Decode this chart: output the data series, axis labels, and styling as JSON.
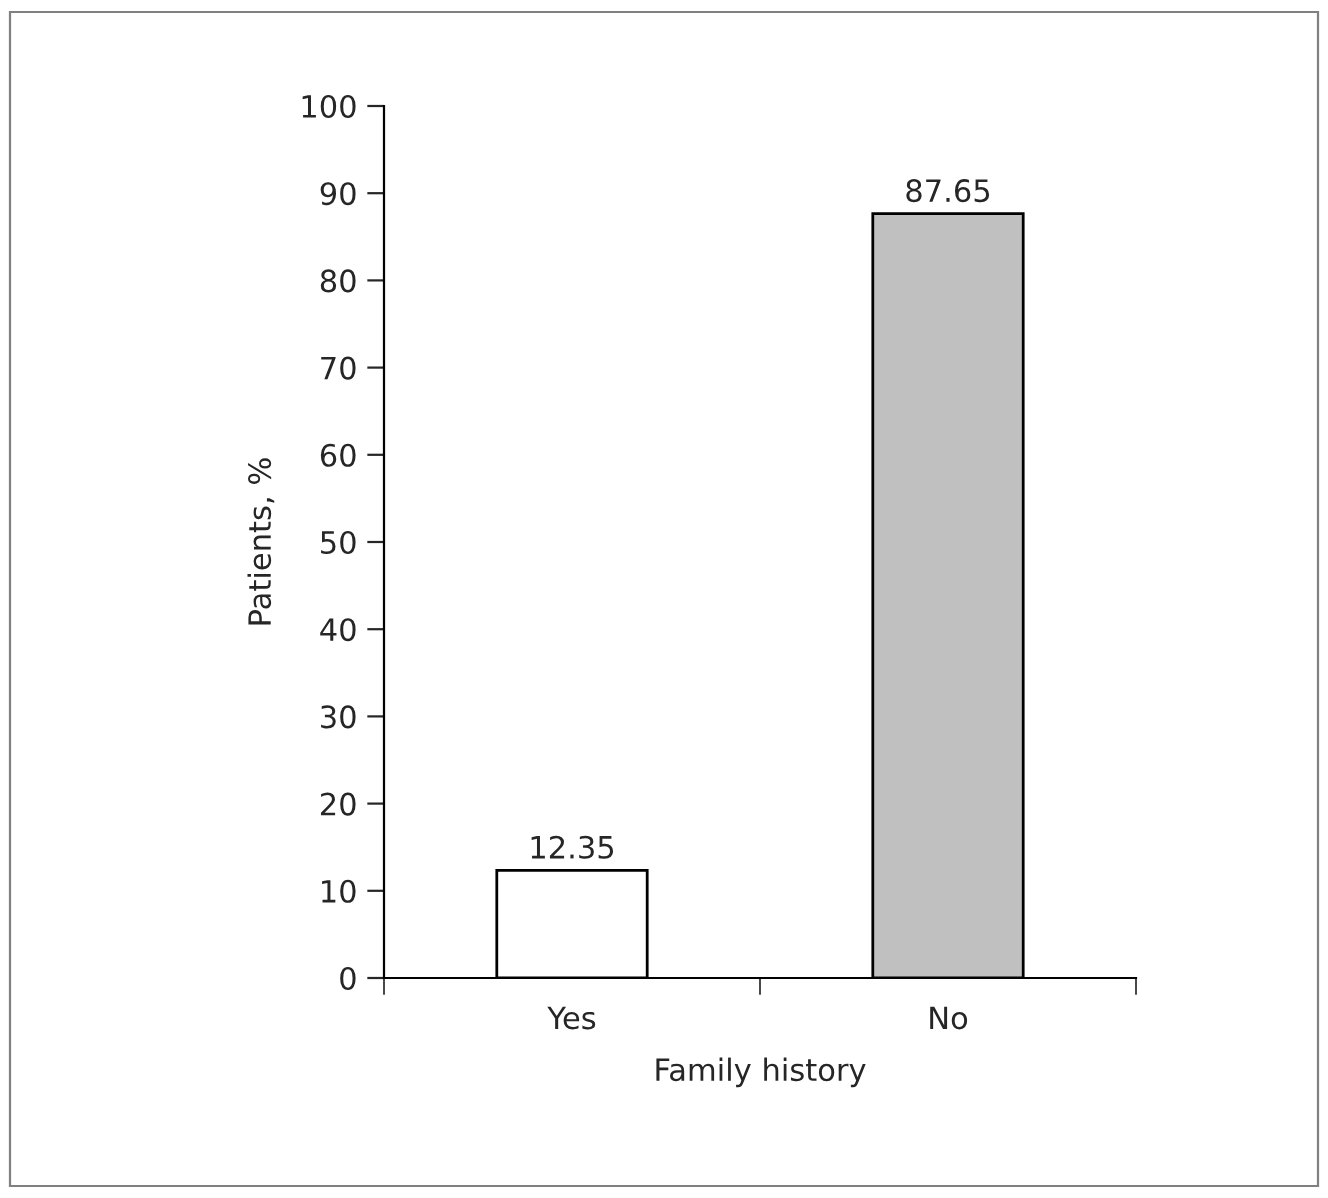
{
  "chart_data": {
    "type": "bar",
    "xlabel": "Family history",
    "ylabel": "Patients, %",
    "categories": [
      "Yes",
      "No"
    ],
    "values": [
      12.35,
      87.65
    ],
    "colors": [
      "#ffffff",
      "#c0c0c0"
    ],
    "ylim": [
      0,
      100
    ],
    "yticks": [
      0,
      10,
      20,
      30,
      40,
      50,
      60,
      70,
      80,
      90,
      100
    ],
    "data_labels": true,
    "grid": false,
    "legend": false
  }
}
